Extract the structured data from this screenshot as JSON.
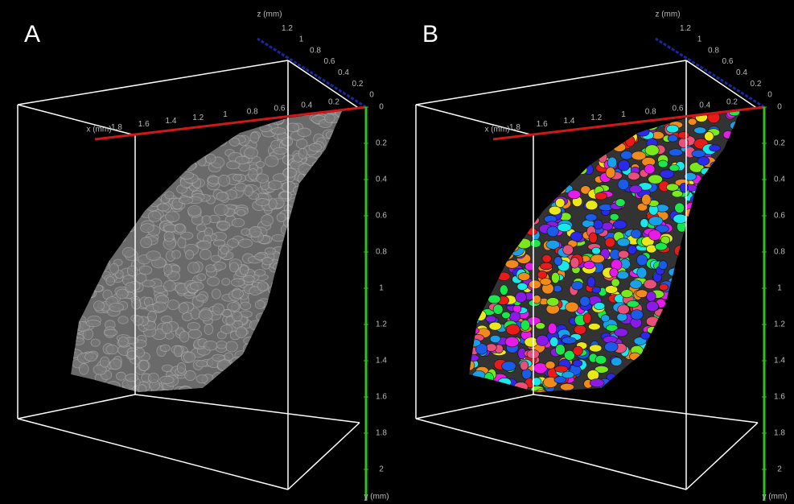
{
  "panels": [
    {
      "label": "A",
      "x_axis": {
        "label": "x (mm)",
        "ticks": [
          0.2,
          0.4,
          0.6,
          0.8,
          1,
          1.2,
          1.4,
          1.6,
          1.8
        ]
      },
      "z_axis": {
        "label": "z (mm)",
        "ticks": [
          0,
          0.2,
          0.4,
          0.6,
          0.8,
          1,
          1.2
        ]
      },
      "y_axis": {
        "label": "y (mm)",
        "ticks": [
          0,
          0.2,
          0.4,
          0.6,
          0.8,
          1,
          1.2,
          1.4,
          1.6,
          1.8,
          2
        ]
      }
    },
    {
      "label": "B",
      "x_axis": {
        "label": "x (mm)",
        "ticks": [
          0.2,
          0.4,
          0.6,
          0.8,
          1,
          1.2,
          1.4,
          1.6,
          1.8
        ]
      },
      "z_axis": {
        "label": "z (mm)",
        "ticks": [
          0,
          0.2,
          0.4,
          0.6,
          0.8,
          1,
          1.2
        ]
      },
      "y_axis": {
        "label": "y (mm)",
        "ticks": [
          0,
          0.2,
          0.4,
          0.6,
          0.8,
          1,
          1.2,
          1.4,
          1.6,
          1.8,
          2
        ]
      }
    }
  ]
}
